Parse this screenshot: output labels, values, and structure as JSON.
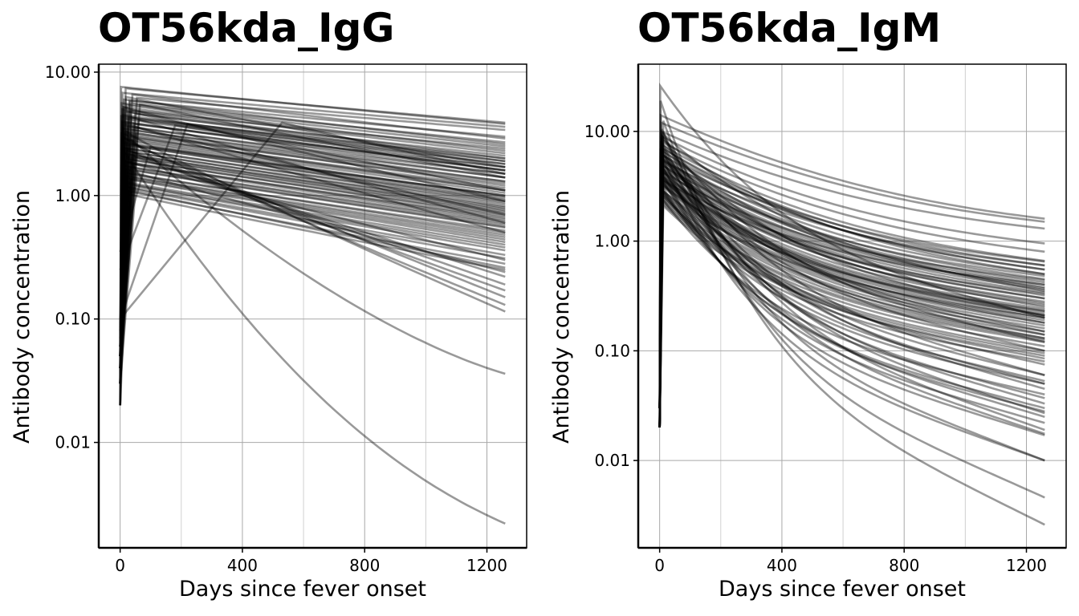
{
  "chart_data": [
    {
      "type": "line",
      "title": "OT56kda_IgG",
      "xlabel": "Days since fever onset",
      "ylabel": "Antibody concentration",
      "xscale": "linear",
      "yscale": "log10",
      "xlim": [
        -70,
        1330
      ],
      "ylim": [
        0.0014,
        11.6
      ],
      "x_ticks": [
        0,
        400,
        800,
        1200
      ],
      "x_tick_labels": [
        "0",
        "400",
        "800",
        "1200"
      ],
      "y_ticks": [
        0.01,
        0.1,
        1,
        10
      ],
      "y_tick_labels": [
        "0.01",
        "0.10",
        "1.00",
        "10.00"
      ],
      "grid": true,
      "legend": "none",
      "line_color": "#000000",
      "line_alpha": 0.4,
      "x_end": 1260,
      "series_fields": [
        "start_value_day0",
        "peak_day",
        "peak_value",
        "end_value_day1260",
        "decay_shape"
      ],
      "series": [
        [
          0.03,
          3,
          7.6,
          3.8,
          0.5
        ],
        [
          0.02,
          18,
          7.4,
          3.9,
          0.3
        ],
        [
          0.05,
          8,
          6.8,
          3.6,
          0.5
        ],
        [
          0.04,
          55,
          6.2,
          3.4,
          0.4
        ],
        [
          0.03,
          40,
          6.6,
          2.9,
          0.6
        ],
        [
          0.06,
          12,
          6.0,
          2.6,
          0.5
        ],
        [
          0.05,
          30,
          5.9,
          3.0,
          0.4
        ],
        [
          0.02,
          5,
          5.6,
          2.5,
          0.6
        ],
        [
          0.08,
          22,
          5.4,
          2.3,
          0.5
        ],
        [
          0.04,
          65,
          5.5,
          2.7,
          0.4
        ],
        [
          0.03,
          10,
          5.2,
          2.2,
          0.6
        ],
        [
          0.05,
          7,
          5.0,
          2.0,
          0.5
        ],
        [
          0.06,
          35,
          4.9,
          2.4,
          0.4
        ],
        [
          0.03,
          15,
          4.8,
          1.9,
          0.5
        ],
        [
          0.04,
          48,
          4.6,
          2.1,
          0.5
        ],
        [
          0.05,
          9,
          4.5,
          1.8,
          0.6
        ],
        [
          0.02,
          4,
          4.4,
          1.7,
          0.5
        ],
        [
          0.07,
          28,
          4.3,
          2.0,
          0.4
        ],
        [
          0.04,
          14,
          4.2,
          1.6,
          0.5
        ],
        [
          0.03,
          60,
          4.1,
          1.8,
          0.5
        ],
        [
          0.05,
          6,
          4.0,
          1.5,
          0.6
        ],
        [
          0.04,
          20,
          3.9,
          1.6,
          0.5
        ],
        [
          0.06,
          45,
          3.8,
          1.7,
          0.4
        ],
        [
          0.03,
          11,
          3.7,
          1.4,
          0.5
        ],
        [
          0.05,
          25,
          3.6,
          1.5,
          0.5
        ],
        [
          0.04,
          8,
          3.5,
          1.3,
          0.6
        ],
        [
          0.02,
          38,
          3.4,
          1.4,
          0.5
        ],
        [
          0.05,
          16,
          3.3,
          1.2,
          0.5
        ],
        [
          0.06,
          5,
          3.2,
          1.25,
          0.6
        ],
        [
          0.04,
          52,
          3.2,
          1.3,
          0.4
        ],
        [
          0.03,
          13,
          3.1,
          1.1,
          0.5
        ],
        [
          0.05,
          30,
          3.0,
          1.15,
          0.5
        ],
        [
          0.04,
          7,
          2.9,
          1.05,
          0.6
        ],
        [
          0.06,
          42,
          2.9,
          1.1,
          0.5
        ],
        [
          0.03,
          19,
          2.8,
          0.98,
          0.5
        ],
        [
          0.05,
          9,
          2.7,
          0.95,
          0.6
        ],
        [
          0.04,
          33,
          2.6,
          1.0,
          0.5
        ],
        [
          0.02,
          12,
          2.6,
          0.9,
          0.5
        ],
        [
          0.05,
          58,
          2.5,
          0.92,
          0.4
        ],
        [
          0.04,
          6,
          2.45,
          0.85,
          0.6
        ],
        [
          0.03,
          24,
          2.4,
          0.88,
          0.5
        ],
        [
          0.06,
          15,
          2.3,
          0.8,
          0.5
        ],
        [
          0.05,
          40,
          2.25,
          0.82,
          0.5
        ],
        [
          0.04,
          10,
          2.2,
          0.76,
          0.6
        ],
        [
          0.03,
          27,
          2.15,
          0.78,
          0.5
        ],
        [
          0.05,
          8,
          2.1,
          0.72,
          0.6
        ],
        [
          0.04,
          50,
          2.05,
          0.74,
          0.4
        ],
        [
          0.02,
          17,
          2.0,
          0.68,
          0.5
        ],
        [
          0.06,
          36,
          1.95,
          0.7,
          0.5
        ],
        [
          0.05,
          11,
          1.9,
          0.64,
          0.6
        ],
        [
          0.04,
          22,
          1.85,
          0.66,
          0.5
        ],
        [
          0.03,
          44,
          1.8,
          0.62,
          0.5
        ],
        [
          0.05,
          7,
          1.75,
          0.6,
          0.6
        ],
        [
          0.04,
          30,
          1.7,
          0.58,
          0.5
        ],
        [
          0.06,
          14,
          1.65,
          0.55,
          0.5
        ],
        [
          0.03,
          55,
          1.6,
          0.56,
          0.4
        ],
        [
          0.05,
          9,
          1.55,
          0.5,
          0.6
        ],
        [
          0.04,
          26,
          1.5,
          0.52,
          0.5
        ],
        [
          0.02,
          18,
          1.45,
          0.48,
          0.5
        ],
        [
          0.05,
          40,
          1.4,
          0.46,
          0.5
        ],
        [
          0.04,
          12,
          1.4,
          0.44,
          0.6
        ],
        [
          0.06,
          33,
          1.35,
          0.42,
          0.5
        ],
        [
          0.03,
          6,
          1.3,
          0.4,
          0.6
        ],
        [
          0.05,
          21,
          1.25,
          0.38,
          0.5
        ],
        [
          0.04,
          48,
          1.2,
          0.36,
          0.5
        ],
        [
          0.03,
          10,
          1.2,
          0.33,
          0.6
        ],
        [
          0.05,
          29,
          1.15,
          0.31,
          0.5
        ],
        [
          0.04,
          15,
          1.1,
          0.28,
          0.5
        ],
        [
          0.06,
          37,
          1.1,
          0.26,
          0.5
        ],
        [
          0.03,
          8,
          1.05,
          0.25,
          0.6
        ],
        [
          0.05,
          24,
          1.6,
          0.24,
          0.7
        ],
        [
          0.04,
          42,
          2.1,
          0.22,
          0.8
        ],
        [
          0.03,
          14,
          2.4,
          0.19,
          0.9
        ],
        [
          0.05,
          31,
          2.7,
          0.15,
          0.9
        ],
        [
          0.04,
          9,
          3.0,
          0.13,
          1.0
        ],
        [
          0.03,
          20,
          3.3,
          0.115,
          1.0
        ],
        [
          0.06,
          46,
          2.2,
          0.17,
          0.8
        ],
        [
          0.05,
          16,
          1.9,
          0.3,
          0.7
        ],
        [
          0.04,
          38,
          4.3,
          0.6,
          0.8
        ],
        [
          0.05,
          12,
          5.2,
          0.9,
          0.7
        ],
        [
          0.03,
          26,
          4.8,
          1.1,
          0.7
        ],
        [
          0.04,
          7,
          3.9,
          0.5,
          0.8
        ],
        [
          0.06,
          52,
          3.6,
          0.7,
          0.7
        ],
        [
          0.05,
          19,
          6.3,
          1.7,
          0.6
        ],
        [
          0.04,
          33,
          5.7,
          1.4,
          0.6
        ],
        [
          0.1,
          220,
          3.8,
          1.9,
          0.4
        ],
        [
          0.25,
          180,
          3.7,
          1.6,
          0.4
        ],
        [
          0.1,
          530,
          3.9,
          1.5,
          0.5
        ],
        [
          0.35,
          100,
          2.5,
          1.0,
          0.5
        ],
        [
          0.06,
          25,
          3.0,
          0.036,
          1.1
        ],
        [
          0.05,
          12,
          2.3,
          0.0022,
          1.3
        ]
      ]
    },
    {
      "type": "line",
      "title": "OT56kda_IgM",
      "xlabel": "Days since fever onset",
      "ylabel": "Antibody concentration",
      "xscale": "linear",
      "yscale": "log10",
      "xlim": [
        -70,
        1330
      ],
      "ylim": [
        0.0016,
        41
      ],
      "x_ticks": [
        0,
        400,
        800,
        1200
      ],
      "x_tick_labels": [
        "0",
        "400",
        "800",
        "1200"
      ],
      "y_ticks": [
        0.01,
        0.1,
        1,
        10
      ],
      "y_tick_labels": [
        "0.01",
        "0.10",
        "1.00",
        "10.00"
      ],
      "grid": true,
      "legend": "none",
      "line_color": "#000000",
      "line_alpha": 0.4,
      "x_end": 1260,
      "series_fields": [
        "start_value_day0",
        "peak_day",
        "peak_value",
        "end_value_day1260",
        "decay_shape"
      ],
      "series": [
        [
          0.02,
          2,
          26,
          0.2,
          2.2
        ],
        [
          0.02,
          3,
          19,
          0.0026,
          2.6
        ],
        [
          0.03,
          4,
          14,
          1.6,
          1.4
        ],
        [
          0.02,
          5,
          12,
          1.5,
          1.4
        ],
        [
          0.03,
          6,
          10,
          1.3,
          1.5
        ],
        [
          0.02,
          7,
          9,
          0.95,
          1.6
        ],
        [
          0.03,
          8,
          8,
          0.8,
          1.6
        ],
        [
          0.02,
          9,
          7.5,
          0.66,
          1.7
        ],
        [
          0.03,
          10,
          7,
          0.6,
          1.7
        ],
        [
          0.02,
          11,
          6.5,
          0.55,
          1.7
        ],
        [
          0.03,
          12,
          6,
          0.5,
          1.8
        ],
        [
          0.02,
          4,
          5.8,
          0.45,
          1.8
        ],
        [
          0.03,
          5,
          5.6,
          0.42,
          1.8
        ],
        [
          0.02,
          6,
          5.4,
          0.4,
          1.8
        ],
        [
          0.03,
          7,
          5.2,
          0.38,
          1.9
        ],
        [
          0.02,
          8,
          5,
          0.36,
          1.9
        ],
        [
          0.03,
          9,
          4.8,
          0.34,
          1.9
        ],
        [
          0.02,
          10,
          4.6,
          0.32,
          1.9
        ],
        [
          0.03,
          11,
          4.4,
          0.3,
          1.9
        ],
        [
          0.02,
          12,
          4.2,
          0.28,
          2.0
        ],
        [
          0.03,
          3,
          4.0,
          0.26,
          2.0
        ],
        [
          0.02,
          4,
          3.9,
          0.24,
          2.0
        ],
        [
          0.03,
          5,
          3.8,
          0.23,
          2.0
        ],
        [
          0.02,
          6,
          3.7,
          0.22,
          2.0
        ],
        [
          0.03,
          7,
          3.6,
          0.21,
          2.0
        ],
        [
          0.02,
          8,
          3.5,
          0.2,
          2.0
        ],
        [
          0.03,
          9,
          3.4,
          0.19,
          2.1
        ],
        [
          0.02,
          10,
          3.3,
          0.18,
          2.1
        ],
        [
          0.03,
          11,
          3.2,
          0.17,
          2.1
        ],
        [
          0.02,
          12,
          3.1,
          0.16,
          2.1
        ],
        [
          0.03,
          3,
          3.0,
          0.15,
          2.1
        ],
        [
          0.02,
          4,
          2.9,
          0.14,
          2.1
        ],
        [
          0.03,
          5,
          2.8,
          0.13,
          2.1
        ],
        [
          0.02,
          6,
          2.7,
          0.125,
          2.2
        ],
        [
          0.03,
          7,
          2.6,
          0.12,
          2.2
        ],
        [
          0.02,
          8,
          2.5,
          0.11,
          2.2
        ],
        [
          0.03,
          9,
          2.4,
          0.1,
          2.2
        ],
        [
          0.02,
          10,
          2.3,
          0.095,
          2.2
        ],
        [
          0.03,
          11,
          2.2,
          0.09,
          2.2
        ],
        [
          0.02,
          12,
          2.1,
          0.08,
          2.2
        ],
        [
          0.03,
          3,
          6.2,
          0.65,
          1.7
        ],
        [
          0.02,
          4,
          5.5,
          0.6,
          1.7
        ],
        [
          0.03,
          5,
          7.2,
          0.55,
          1.8
        ],
        [
          0.02,
          6,
          8.5,
          0.5,
          1.8
        ],
        [
          0.03,
          7,
          4.9,
          0.48,
          1.8
        ],
        [
          0.02,
          8,
          4.3,
          0.44,
          1.9
        ],
        [
          0.03,
          9,
          3.6,
          0.4,
          1.9
        ],
        [
          0.02,
          10,
          6.8,
          0.37,
          2.0
        ],
        [
          0.03,
          11,
          9.5,
          0.35,
          2.0
        ],
        [
          0.02,
          12,
          3.9,
          0.33,
          2.0
        ],
        [
          0.03,
          3,
          5.1,
          0.3,
          2.0
        ],
        [
          0.02,
          4,
          4.7,
          0.27,
          2.0
        ],
        [
          0.03,
          5,
          6.4,
          0.25,
          2.1
        ],
        [
          0.02,
          6,
          3.3,
          0.23,
          2.1
        ],
        [
          0.03,
          7,
          7.8,
          0.21,
          2.1
        ],
        [
          0.02,
          8,
          2.9,
          0.2,
          2.1
        ],
        [
          0.03,
          9,
          4.4,
          0.18,
          2.2
        ],
        [
          0.02,
          10,
          5.9,
          0.15,
          2.2
        ],
        [
          0.03,
          11,
          3.7,
          0.13,
          2.2
        ],
        [
          0.02,
          12,
          8.8,
          0.12,
          2.3
        ],
        [
          0.03,
          3,
          6.6,
          0.1,
          2.3
        ],
        [
          0.02,
          4,
          2.7,
          0.085,
          2.3
        ],
        [
          0.03,
          5,
          4.1,
          0.075,
          2.3
        ],
        [
          0.02,
          6,
          9.2,
          0.06,
          2.4
        ],
        [
          0.03,
          7,
          3.5,
          0.053,
          2.4
        ],
        [
          0.02,
          8,
          5.3,
          0.05,
          2.4
        ],
        [
          0.03,
          9,
          7.0,
          0.045,
          2.4
        ],
        [
          0.02,
          10,
          2.4,
          0.04,
          2.4
        ],
        [
          0.03,
          11,
          4.6,
          0.037,
          2.5
        ],
        [
          0.02,
          12,
          6.1,
          0.033,
          2.5
        ],
        [
          0.03,
          3,
          3.1,
          0.03,
          2.5
        ],
        [
          0.02,
          4,
          8.1,
          0.027,
          2.5
        ],
        [
          0.03,
          5,
          5.0,
          0.025,
          2.6
        ],
        [
          0.02,
          6,
          3.8,
          0.022,
          2.6
        ],
        [
          0.03,
          7,
          10.5,
          0.019,
          2.6
        ],
        [
          0.02,
          8,
          4.2,
          0.017,
          2.6
        ],
        [
          0.03,
          9,
          6.9,
          0.0175,
          2.6
        ],
        [
          0.02,
          10,
          5.7,
          0.01,
          2.7
        ],
        [
          0.03,
          11,
          9.8,
          0.01,
          2.7
        ],
        [
          0.02,
          12,
          12.5,
          0.0046,
          2.7
        ],
        [
          0.03,
          4,
          4.5,
          0.06,
          2.3
        ],
        [
          0.02,
          6,
          3.2,
          0.028,
          2.5
        ],
        [
          0.03,
          8,
          2.8,
          0.05,
          2.3
        ],
        [
          0.02,
          10,
          5.6,
          0.14,
          2.2
        ],
        [
          0.03,
          5,
          4.3,
          0.21,
          2.1
        ]
      ]
    }
  ]
}
